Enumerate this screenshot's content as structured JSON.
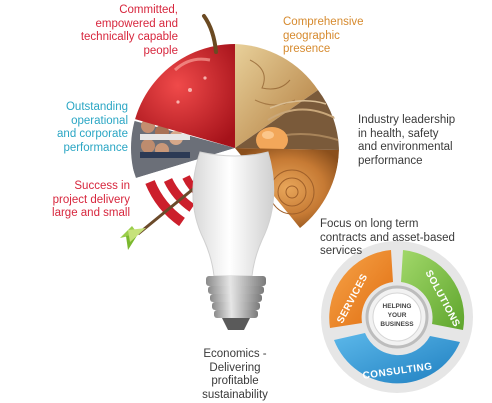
{
  "labels": {
    "committed": "Committed,\nempowered and\ntechnically capable\npeople",
    "geographic": "Comprehensive\ngeographic\npresence",
    "outstanding": "Outstanding\noperational\nand corporate\nperformance",
    "industry": "Industry leadership\nin health, safety\nand environmental\nperformance",
    "success": "Success in\nproject delivery\nlarge and small",
    "contracts": "Focus on long term\ncontracts and asset-based\nservices",
    "economics": "Economics -\nDelivering\nprofitable\nsustainability"
  },
  "colors": {
    "committed": "#d7263d",
    "geographic": "#d68a2e",
    "outstanding": "#2aa6c4",
    "industry": "#3a3a3a",
    "success": "#d7263d",
    "contracts": "#3a3a3a",
    "economics": "#3a3a3a",
    "services": "#f08a24",
    "solutions": "#7ac143",
    "consulting": "#2f9bd6"
  },
  "wheel": {
    "services": "SERVICES",
    "solutions": "SOLUTIONS",
    "consulting": "CONSULTING",
    "hub_line1": "HELPING",
    "hub_line2": "YOUR",
    "hub_line3": "BUSINESS"
  }
}
